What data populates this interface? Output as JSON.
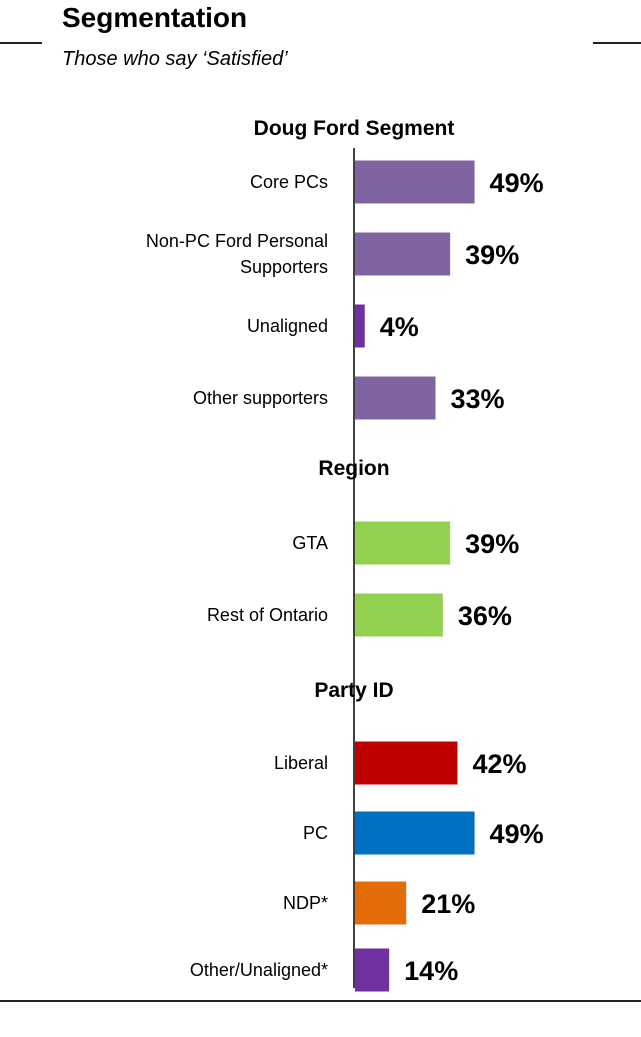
{
  "title": "Segmentation",
  "subtitle": "Those who say ‘Satisfied’",
  "colors": {
    "purple": "#8064a2",
    "purple_dark": "#7030a0",
    "green": "#92d050",
    "red": "#c00000",
    "blue": "#0070c0",
    "orange": "#e36c09",
    "axis": "#000000"
  },
  "chart_data": {
    "type": "bar",
    "orientation": "horizontal",
    "unit": "%",
    "xlim": [
      0,
      100
    ],
    "groups": [
      {
        "name": "Doug Ford Segment",
        "items": [
          {
            "label": [
              "Core PCs"
            ],
            "value": 49,
            "color": "#8064a2"
          },
          {
            "label": [
              "Non-PC Ford Personal",
              "Supporters"
            ],
            "value": 39,
            "color": "#8064a2"
          },
          {
            "label": [
              "Unaligned"
            ],
            "value": 4,
            "color": "#7030a0"
          },
          {
            "label": [
              "Other supporters"
            ],
            "value": 33,
            "color": "#8064a2"
          }
        ]
      },
      {
        "name": "Region",
        "items": [
          {
            "label": [
              "GTA"
            ],
            "value": 39,
            "color": "#92d050"
          },
          {
            "label": [
              "Rest of Ontario"
            ],
            "value": 36,
            "color": "#92d050"
          }
        ]
      },
      {
        "name": "Party ID",
        "items": [
          {
            "label": [
              "Liberal"
            ],
            "value": 42,
            "color": "#c00000"
          },
          {
            "label": [
              "PC"
            ],
            "value": 49,
            "color": "#0070c0"
          },
          {
            "label": [
              "NDP*"
            ],
            "value": 21,
            "color": "#e36c09"
          },
          {
            "label": [
              "Other/Unaligned*"
            ],
            "value": 14,
            "color": "#7030a0"
          }
        ]
      }
    ]
  }
}
